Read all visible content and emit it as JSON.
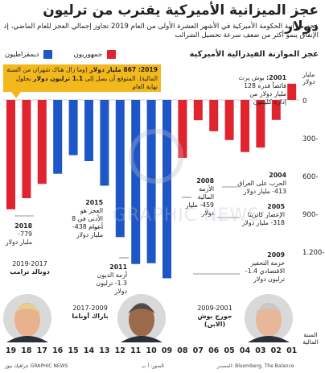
{
  "header": {
    "title": "عجز الميزانية الأميركية يقترب من ترليون دولار",
    "subtitle": "عجز ميزانية الحكومة الأميركية في الأشهر العشرة الأولى من العام 2019 تجاوز إجمالي العجز للعام الماضي، إذ الإنفاق ينمو أكثر من ضعف سرعة تحصيل الضرائب",
    "section_title": "عجز الموازنة الفيدرالية الأميركية"
  },
  "legend": {
    "republicans": "جمهوريون",
    "democrats": "ديمقراطيون"
  },
  "colors": {
    "republican": "#e0242f",
    "democrat": "#1f56c7",
    "callout": "#f2b81c"
  },
  "axis": {
    "unit_label": "مليار دولار",
    "x_title": "السنة المالية",
    "y_ticks": [
      "0",
      "300-",
      "600-",
      "900-",
      "1.200-"
    ]
  },
  "callout": {
    "line1_bold": "2019: 867 مليار دولار",
    "line1_rest": "(وما زال هناك شهران من السنة المالية). المتوقع أن يصل إلى",
    "line2_bold": "1.1 ترليون دولار",
    "line2_rest": "بحلول نهاية العام"
  },
  "annotations": {
    "a2001_year": "2001:",
    "a2001_text": "بوش يرث فائضاً قدره 128 مليار دولار من إدارة كلينتون",
    "a2004_year": "2004",
    "a2004_text": "الحرب على العراق 413- مليار دولار",
    "a2005_year": "2005",
    "a2005_text": "الإعصار كاترينا 318- مليار دولار",
    "a2008_year": "2008",
    "a2008_text": "الأزمة المالية 459- مليار دولار",
    "a2009_year": "2009",
    "a2009_text": "حزمة التحفيز الاقتصادي 1.4- ترليون دولار",
    "a2011_year": "2011",
    "a2011_text": "أزمة الديون 1.3- ترليون دولار",
    "a2015_year": "2015",
    "a2015_text": "العجز هو الأدنى في 8 أعوام 438- مليار دولار",
    "a2018_year": "2018",
    "a2018_text": "779- مليار دولار"
  },
  "presidents": [
    {
      "years": "2019-2017",
      "name": "دونالد ترامب"
    },
    {
      "years": "2017-2009",
      "name": "باراك أوباما"
    },
    {
      "years": "2009-2001",
      "name": "جورج بوش (الابن)"
    }
  ],
  "footer": {
    "left": "جرافيك نيوز GRAPHIC NEWS",
    "middle": "الصور: أ ب",
    "right": "المصدر: Bloomberg, The Balance"
  },
  "chart_data": {
    "type": "bar",
    "title": "عجز الموازنة الفيدرالية الأميركية",
    "ylabel": "مليار دولار",
    "xlabel": "السنة المالية",
    "categories": [
      "19",
      "18",
      "17",
      "16",
      "15",
      "14",
      "13",
      "12",
      "11",
      "10",
      "09",
      "08",
      "07",
      "06",
      "05",
      "04",
      "03",
      "02",
      "01"
    ],
    "values": [
      -867,
      -779,
      -665,
      -585,
      -438,
      -485,
      -680,
      -1087,
      -1300,
      -1294,
      -1413,
      -459,
      -161,
      -248,
      -318,
      -413,
      -378,
      -158,
      128
    ],
    "party": [
      "R",
      "R",
      "R",
      "D",
      "D",
      "D",
      "D",
      "D",
      "D",
      "D",
      "D",
      "R",
      "R",
      "R",
      "R",
      "R",
      "R",
      "R",
      "R"
    ],
    "ylim": [
      -1500,
      150
    ],
    "grid": false
  }
}
